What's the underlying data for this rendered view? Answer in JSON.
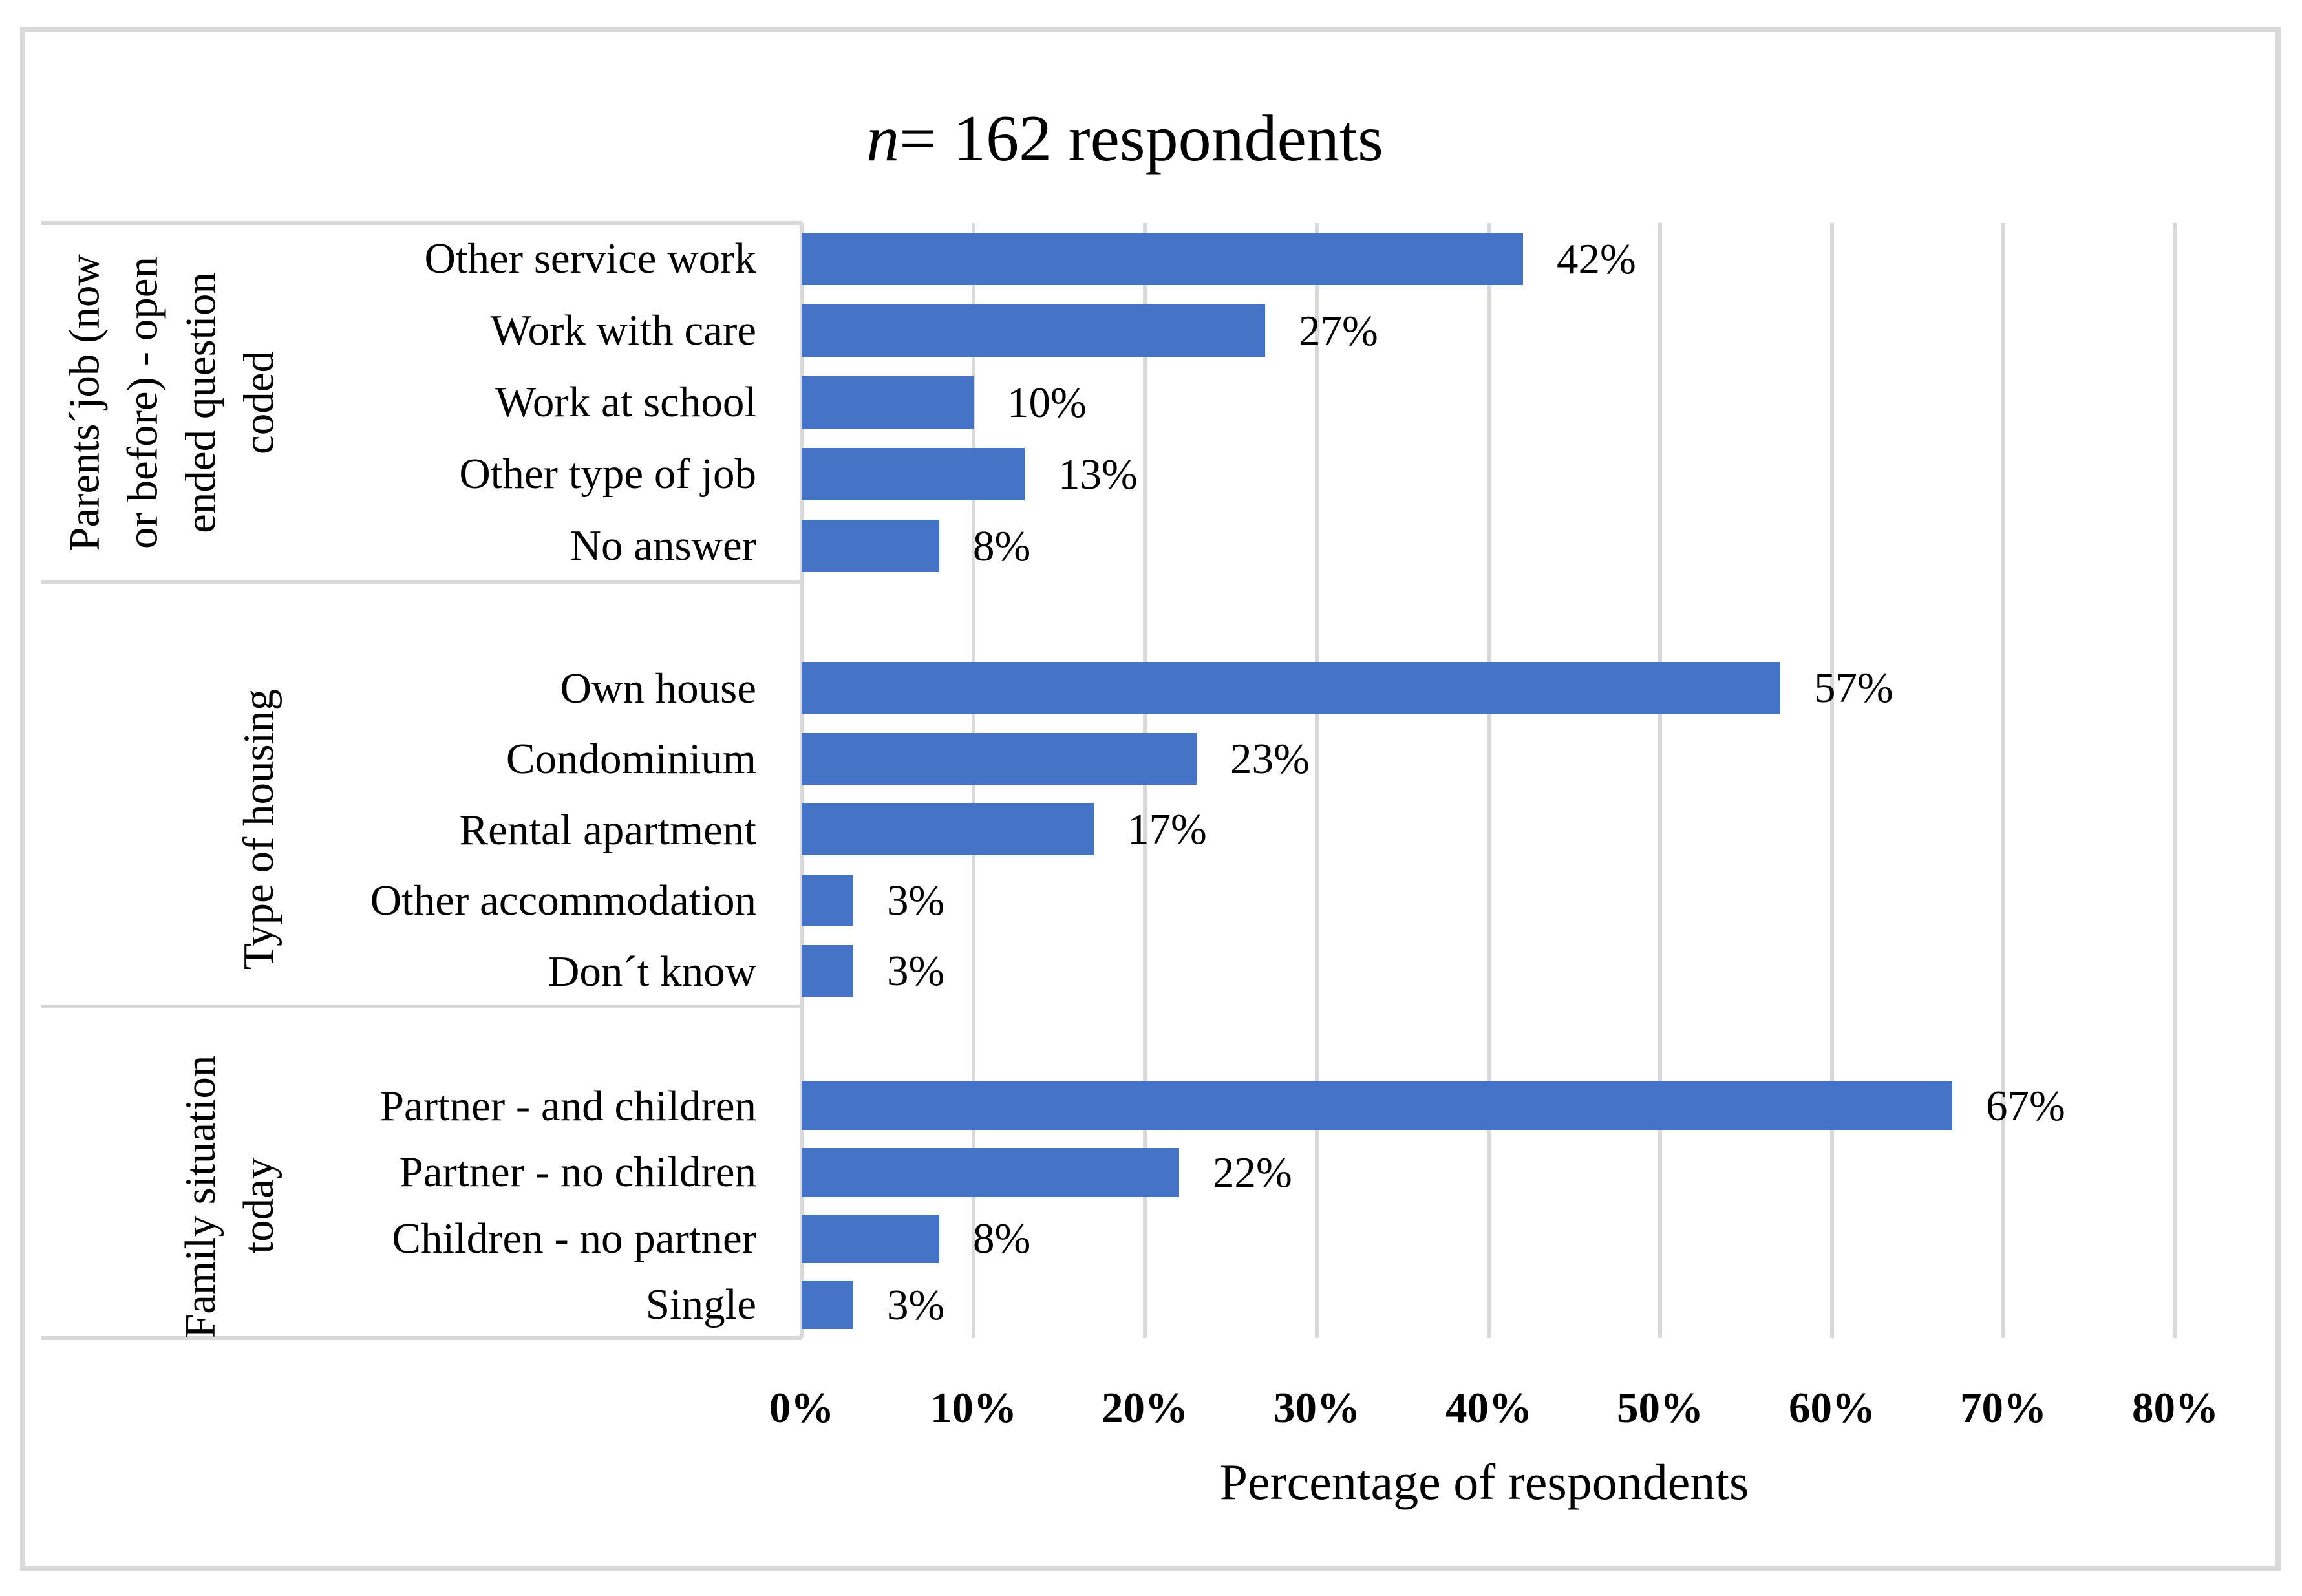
{
  "title": {
    "italic_part": "n",
    "rest": "= 162 respondents"
  },
  "axis": {
    "tick_labels": [
      "0%",
      "10%",
      "20%",
      "30%",
      "40%",
      "50%",
      "60%",
      "70%",
      "80%"
    ],
    "label": "Percentage of respondents"
  },
  "colors": {
    "bar": "#4472C4",
    "gridline": "#D9D9D9",
    "text": "#000000",
    "background": "#FFFFFF"
  },
  "chart_data": {
    "type": "bar",
    "orientation": "horizontal",
    "title": "n= 162 respondents",
    "xlabel": "Percentage of respondents",
    "xlim": [
      0,
      80
    ],
    "x_ticks_percent": [
      0,
      10,
      20,
      30,
      40,
      50,
      60,
      70,
      80
    ],
    "grid": true,
    "bar_color": "#4472C4",
    "groups": [
      {
        "group_label": "Parents´job (now or before) - open ended question coded",
        "group_label_lines": [
          "Parents´job (now",
          "or before) - open",
          "ended question",
          "coded"
        ],
        "categories": [
          "Other service work",
          "Work with care",
          "Work at school",
          "Other type of job",
          "No answer"
        ],
        "values": [
          42,
          27,
          10,
          13,
          8
        ],
        "data_labels": [
          "42%",
          "27%",
          "10%",
          "13%",
          "8%"
        ]
      },
      {
        "group_label": "Type of housing",
        "group_label_lines": [
          "Type of housing"
        ],
        "categories": [
          "Own house",
          "Condominium",
          "Rental apartment",
          "Other accommodation",
          "Don´t know"
        ],
        "values": [
          57,
          23,
          17,
          3,
          3
        ],
        "data_labels": [
          "57%",
          "23%",
          "17%",
          "3%",
          "3%"
        ]
      },
      {
        "group_label": "Family situation today",
        "group_label_lines": [
          "Family situation",
          "today"
        ],
        "categories": [
          "Partner - and children",
          "Partner - no children",
          "Children - no partner",
          "Single"
        ],
        "values": [
          67,
          22,
          8,
          3
        ],
        "data_labels": [
          "67%",
          "22%",
          "8%",
          "3%"
        ]
      }
    ]
  }
}
